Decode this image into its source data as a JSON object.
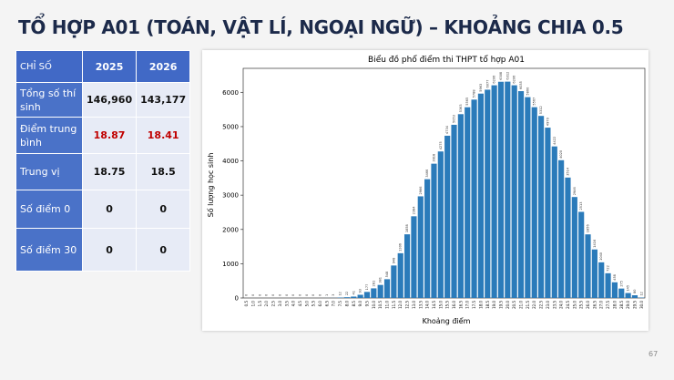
{
  "header": {
    "title": "TỔ HỢP A01 (TOÁN, VẬT LÍ, NGOẠI NGỮ) – KHOẢNG CHIA 0.5"
  },
  "table": {
    "columns": [
      "CHỈ SỐ",
      "2025",
      "2026"
    ],
    "rows": [
      [
        "Tổng số thí sinh",
        "146,960",
        "143,177"
      ],
      [
        "Điểm trung bình",
        "18.87",
        "18.41"
      ],
      [
        "Trung vị",
        "18.75",
        "18.5"
      ],
      [
        "Số điểm 0",
        "0",
        "0"
      ],
      [
        "Số điểm 30",
        "0",
        "0"
      ]
    ]
  },
  "chart_data": {
    "type": "bar",
    "title": "Biểu đồ phổ điểm thi THPT tổ hợp A01",
    "x_label": "Khoảng điểm",
    "y_label": "Số lượng học sinh",
    "categories": [
      "0.5",
      "1.0",
      "1.5",
      "2.0",
      "2.5",
      "3.0",
      "3.5",
      "4.0",
      "4.5",
      "5.0",
      "5.5",
      "6.0",
      "6.5",
      "7.0",
      "7.5",
      "8.0",
      "8.5",
      "9.0",
      "9.5",
      "10.0",
      "10.5",
      "11.0",
      "11.5",
      "12.0",
      "12.5",
      "13.0",
      "13.5",
      "14.0",
      "14.5",
      "15.0",
      "15.5",
      "16.0",
      "16.5",
      "17.0",
      "17.5",
      "18.0",
      "18.5",
      "19.0",
      "19.5",
      "20.0",
      "20.5",
      "21.0",
      "21.5",
      "22.0",
      "22.5",
      "23.0",
      "23.5",
      "24.0",
      "24.5",
      "25.0",
      "25.5",
      "26.0",
      "26.5",
      "27.0",
      "27.5",
      "28.0",
      "28.5",
      "29.0",
      "29.5",
      "30.0"
    ],
    "values": [
      0,
      0,
      0,
      0,
      0,
      0,
      0,
      0,
      0,
      0,
      0,
      0,
      1,
      3,
      12,
      22,
      41,
      93,
      177,
      281,
      381,
      548,
      948,
      1306,
      1858,
      2384,
      2966,
      3466,
      3918,
      4275,
      4734,
      5053,
      5363,
      5565,
      5788,
      5963,
      6077,
      6206,
      6308,
      6312,
      6206,
      6035,
      5860,
      5567,
      5312,
      4970,
      4422,
      4020,
      3514,
      2946,
      2513,
      1856,
      1416,
      1040,
      722,
      458,
      275,
      145,
      80,
      12
    ],
    "color": "#2b7bba",
    "ylim": [
      0,
      6700
    ],
    "yticks": [
      0,
      1000,
      2000,
      3000,
      4000,
      5000,
      6000
    ]
  },
  "page_number": "67"
}
